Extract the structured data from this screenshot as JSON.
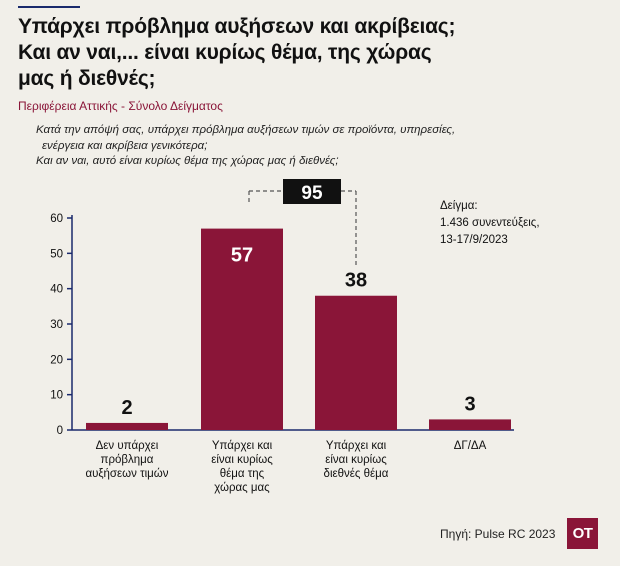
{
  "header": {
    "title_lines": [
      "Υπάρχει πρόβλημα αυξήσεων και ακρίβειας;",
      "Και αν ναι,... είναι κυρίως θέμα, της χώρας",
      "μας ή διεθνές;"
    ],
    "subtitle": "Περιφέρεια Αττικής - Σύνολο Δείγματος",
    "question_lines": [
      "Κατά την απόψή σας, υπάρχει πρόβλημα αυξήσεων τιμών σε προϊόντα, υπηρεσίες,",
      "ενέργεια και ακρίβεια γενικότερα;",
      "Και αν ναι, αυτό είναι κυρίως θέμα της χώρας μας ή διεθνές;"
    ]
  },
  "sample": {
    "lines": [
      "Δείγμα:",
      "1.436 συνεντεύξεις,",
      "13-17/9/2023"
    ]
  },
  "footer": {
    "source": "Πηγή: Pulse RC 2023",
    "logo": "OT"
  },
  "colors": {
    "bar": "#8a1538",
    "axis": "#1a2a6c",
    "background": "#f1efe9",
    "total_box": "#111111"
  },
  "chart_data": {
    "type": "bar",
    "categories": [
      [
        "Δεν υπάρχει",
        "πρόβλημα",
        "αυξήσεων τιμών"
      ],
      [
        "Υπάρχει και",
        "είναι κυρίως",
        "θέμα της",
        "χώρας μας"
      ],
      [
        "Υπάρχει και",
        "είναι κυρίως",
        "διεθνές θέμα"
      ],
      [
        "ΔΓ/ΔΑ"
      ]
    ],
    "values": [
      2,
      57,
      38,
      3
    ],
    "ylim": [
      0,
      60
    ],
    "yticks": [
      0,
      10,
      20,
      30,
      40,
      50,
      60
    ],
    "bracket_total": {
      "value": "95",
      "spans": [
        1,
        2
      ]
    },
    "xlabel": "",
    "ylabel": "",
    "grid": false
  }
}
